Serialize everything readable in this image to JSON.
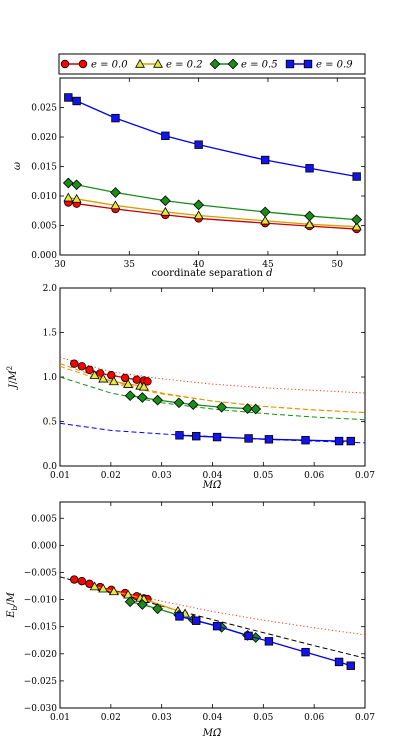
{
  "legend": {
    "entries": [
      {
        "label": "e = 0.0",
        "color": "#ff0000",
        "line": "#cc0000",
        "marker": "circle"
      },
      {
        "label": "e = 0.2",
        "color": "#e6e63c",
        "line": "#d6a000",
        "marker": "triangle"
      },
      {
        "label": "e = 0.5",
        "color": "#1a8c1a",
        "line": "#1a8c1a",
        "marker": "diamond"
      },
      {
        "label": "e = 0.9",
        "color": "#1414e6",
        "line": "#0000ee",
        "marker": "square"
      }
    ]
  },
  "chart_data": [
    {
      "type": "line",
      "xlabel": "coordinate separation d",
      "ylabel": "ω",
      "xlim": [
        30,
        52
      ],
      "ylim": [
        0.0,
        0.03
      ],
      "xticks": [
        "30",
        "35",
        "40",
        "45",
        "50"
      ],
      "yticks": [
        "0.000",
        "0.005",
        "0.010",
        "0.015",
        "0.020",
        "0.025"
      ],
      "grid": false,
      "series": [
        {
          "name": "e = 0.0",
          "x": [
            30.6,
            31.2,
            34.0,
            37.6,
            40.0,
            44.8,
            48.0,
            51.4
          ],
          "y": [
            0.0089,
            0.0087,
            0.0078,
            0.0068,
            0.0062,
            0.0054,
            0.0049,
            0.0044
          ]
        },
        {
          "name": "e = 0.2",
          "x": [
            30.6,
            31.2,
            34.0,
            37.6,
            40.0,
            44.8,
            48.0,
            51.4
          ],
          "y": [
            0.0097,
            0.0095,
            0.0084,
            0.0073,
            0.0067,
            0.0058,
            0.0052,
            0.0048
          ]
        },
        {
          "name": "e = 0.5",
          "x": [
            30.6,
            31.2,
            34.0,
            37.6,
            40.0,
            44.8,
            48.0,
            51.4
          ],
          "y": [
            0.0122,
            0.0119,
            0.0106,
            0.0092,
            0.0085,
            0.0073,
            0.0066,
            0.006
          ]
        },
        {
          "name": "e = 0.9",
          "x": [
            30.6,
            31.2,
            34.0,
            37.6,
            40.0,
            44.8,
            48.0,
            51.4
          ],
          "y": [
            0.0267,
            0.0261,
            0.0232,
            0.0202,
            0.0187,
            0.0161,
            0.0147,
            0.0133
          ]
        }
      ]
    },
    {
      "type": "scatter",
      "xlabel": "MΩ̄",
      "ylabel": "J/M²",
      "xlim": [
        0.01,
        0.07
      ],
      "ylim": [
        0.0,
        2.0
      ],
      "xticks": [
        "0.01",
        "0.02",
        "0.03",
        "0.04",
        "0.05",
        "0.06",
        "0.07"
      ],
      "yticks": [
        "0.0",
        "0.5",
        "1.0",
        "1.5",
        "2.0"
      ],
      "grid": false,
      "series": [
        {
          "name": "e = 0.0",
          "x": [
            0.0128,
            0.0143,
            0.0158,
            0.0179,
            0.0201,
            0.0228,
            0.0251,
            0.0265,
            0.0272
          ],
          "y": [
            1.15,
            1.12,
            1.08,
            1.04,
            1.02,
            0.99,
            0.97,
            0.96,
            0.95
          ]
        },
        {
          "name": "e = 0.2",
          "x": [
            0.0168,
            0.0185,
            0.0206,
            0.0234,
            0.0258,
            0.0265
          ],
          "y": [
            1.02,
            0.98,
            0.95,
            0.92,
            0.9,
            0.89
          ]
        },
        {
          "name": "e = 0.5",
          "x": [
            0.0238,
            0.0262,
            0.0292,
            0.0334,
            0.0362,
            0.0418,
            0.0469,
            0.0485
          ],
          "y": [
            0.79,
            0.77,
            0.74,
            0.71,
            0.69,
            0.66,
            0.645,
            0.64
          ]
        },
        {
          "name": "e = 0.9",
          "x": [
            0.0335,
            0.0368,
            0.0409,
            0.0471,
            0.0511,
            0.0583,
            0.0649,
            0.0672
          ],
          "y": [
            0.345,
            0.335,
            0.325,
            0.31,
            0.3,
            0.29,
            0.28,
            0.28
          ]
        }
      ],
      "reference_curves": [
        {
          "style": "dotted",
          "color": "#ff3b1f",
          "x": [
            0.01,
            0.02,
            0.03,
            0.04,
            0.05,
            0.06,
            0.07
          ],
          "y": [
            1.22,
            1.06,
            0.98,
            0.92,
            0.88,
            0.85,
            0.82
          ]
        },
        {
          "style": "dashed",
          "color": "#ff7f00",
          "x": [
            0.01,
            0.02,
            0.03,
            0.04,
            0.05,
            0.06,
            0.07
          ],
          "y": [
            1.15,
            0.95,
            0.82,
            0.73,
            0.67,
            0.63,
            0.6
          ]
        },
        {
          "style": "dashed",
          "color": "#d6a000",
          "x": [
            0.01,
            0.02,
            0.03,
            0.04,
            0.05,
            0.06,
            0.07
          ],
          "y": [
            1.12,
            0.93,
            0.81,
            0.73,
            0.67,
            0.63,
            0.6
          ]
        },
        {
          "style": "dashed",
          "color": "#1a8c1a",
          "x": [
            0.01,
            0.02,
            0.03,
            0.04,
            0.05,
            0.06,
            0.07
          ],
          "y": [
            1.0,
            0.82,
            0.71,
            0.64,
            0.59,
            0.55,
            0.52
          ]
        },
        {
          "style": "dashed",
          "color": "#0000ee",
          "x": [
            0.01,
            0.02,
            0.03,
            0.04,
            0.05,
            0.06,
            0.07
          ],
          "y": [
            0.48,
            0.4,
            0.36,
            0.33,
            0.3,
            0.28,
            0.26
          ]
        }
      ]
    },
    {
      "type": "line",
      "xlabel": "MΩ̄",
      "ylabel": "E_b/M",
      "xlim": [
        0.01,
        0.07
      ],
      "ylim": [
        -0.03,
        0.008
      ],
      "xticks": [
        "0.01",
        "0.02",
        "0.03",
        "0.04",
        "0.05",
        "0.06",
        "0.07"
      ],
      "yticks": [
        "−0.030",
        "−0.025",
        "−0.020",
        "−0.015",
        "−0.010",
        "−0.005",
        "0.000",
        "0.005"
      ],
      "grid": false,
      "series": [
        {
          "name": "e = 0.0",
          "x": [
            0.0128,
            0.0143,
            0.0158,
            0.0179,
            0.0201,
            0.0228,
            0.0251,
            0.0265,
            0.0272
          ],
          "y": [
            -0.0063,
            -0.0066,
            -0.0071,
            -0.0077,
            -0.0082,
            -0.0088,
            -0.0094,
            -0.0098,
            -0.0099
          ]
        },
        {
          "name": "e = 0.2",
          "x": [
            0.0168,
            0.0185,
            0.0206,
            0.0234,
            0.0258,
            0.0265,
            0.0332,
            0.0346
          ],
          "y": [
            -0.0076,
            -0.008,
            -0.0085,
            -0.0091,
            -0.0097,
            -0.0099,
            -0.0121,
            -0.0126
          ]
        },
        {
          "name": "e = 0.5",
          "x": [
            0.0238,
            0.0262,
            0.0292,
            0.0334,
            0.0362,
            0.0418,
            0.0469,
            0.0485
          ],
          "y": [
            -0.0104,
            -0.0109,
            -0.0117,
            -0.0129,
            -0.0137,
            -0.0151,
            -0.0166,
            -0.017
          ]
        },
        {
          "name": "e = 0.9",
          "x": [
            0.0335,
            0.0368,
            0.0409,
            0.0471,
            0.0511,
            0.0583,
            0.0649,
            0.0672
          ],
          "y": [
            -0.0131,
            -0.0139,
            -0.0149,
            -0.0167,
            -0.0177,
            -0.0197,
            -0.0215,
            -0.0222
          ]
        }
      ],
      "reference_curves": [
        {
          "style": "dotted",
          "color": "#ff3b1f",
          "x": [
            0.01,
            0.02,
            0.03,
            0.04,
            0.05,
            0.06,
            0.07
          ],
          "y": [
            -0.0058,
            -0.0082,
            -0.0103,
            -0.0122,
            -0.0138,
            -0.0152,
            -0.0165
          ]
        },
        {
          "style": "dashed",
          "color": "#000000",
          "x": [
            0.01,
            0.02,
            0.03,
            0.04,
            0.05,
            0.06,
            0.07
          ],
          "y": [
            -0.0058,
            -0.0085,
            -0.0112,
            -0.0137,
            -0.0161,
            -0.0185,
            -0.0208
          ]
        }
      ]
    }
  ]
}
